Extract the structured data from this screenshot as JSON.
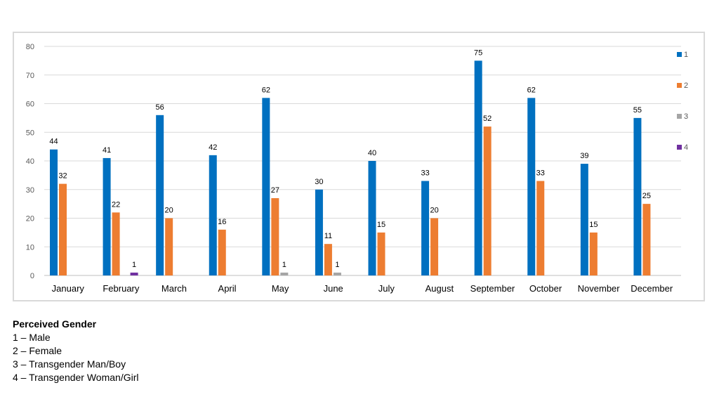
{
  "chart_data": {
    "type": "bar",
    "categories": [
      "January",
      "February",
      "March",
      "April",
      "May",
      "June",
      "July",
      "August",
      "September",
      "October",
      "November",
      "December"
    ],
    "series": [
      {
        "name": "1",
        "color": "#0070C0",
        "values": [
          44,
          41,
          56,
          42,
          62,
          30,
          40,
          33,
          75,
          62,
          39,
          55
        ]
      },
      {
        "name": "2",
        "color": "#ED7D31",
        "values": [
          32,
          22,
          20,
          16,
          27,
          11,
          15,
          20,
          52,
          33,
          15,
          25
        ]
      },
      {
        "name": "3",
        "color": "#A5A5A5",
        "values": [
          null,
          null,
          null,
          null,
          1,
          1,
          null,
          null,
          null,
          null,
          null,
          null
        ]
      },
      {
        "name": "4",
        "color": "#7030A0",
        "values": [
          null,
          1,
          null,
          null,
          null,
          null,
          null,
          null,
          null,
          null,
          null,
          null
        ]
      }
    ],
    "ylim": [
      0,
      80
    ],
    "yticks": [
      0,
      10,
      20,
      30,
      40,
      50,
      60,
      70,
      80
    ],
    "grid": true,
    "legend_position": "right"
  },
  "notes": {
    "title": "Perceived Gender",
    "items": [
      "1 – Male",
      "2 – Female",
      "3 – Transgender Man/Boy",
      "4 – Transgender Woman/Girl"
    ]
  }
}
